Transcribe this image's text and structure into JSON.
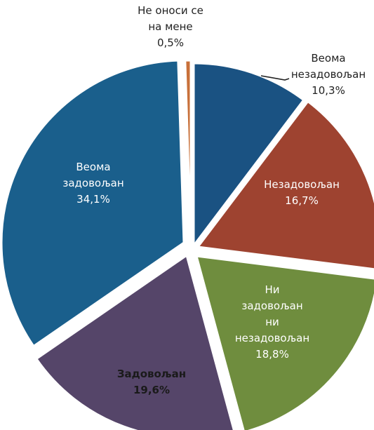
{
  "chart_data": {
    "type": "pie",
    "title": "",
    "slices": [
      {
        "label_lines": [
          "Веома",
          "незадовољан"
        ],
        "value": 10.3,
        "value_label": "10,3%",
        "color": "#1a5282",
        "text_color": "#222222",
        "outside": true
      },
      {
        "label_lines": [
          "Незадовољан"
        ],
        "value": 16.7,
        "value_label": "16,7%",
        "color": "#9e4330",
        "text_color": "#ffffff",
        "outside": false
      },
      {
        "label_lines": [
          "Ни",
          "задовољан",
          "ни",
          "незадовољан"
        ],
        "value": 18.8,
        "value_label": "18,8%",
        "color": "#6f8d3e",
        "text_color": "#ffffff",
        "outside": false
      },
      {
        "label_lines": [
          "Задовољан"
        ],
        "value": 19.6,
        "value_label": "19,6%",
        "color": "#554569",
        "text_color": "#1a1a1a",
        "outside": false
      },
      {
        "label_lines": [
          "Веома",
          "задовољан"
        ],
        "value": 34.1,
        "value_label": "34,1%",
        "color": "#1a5f8c",
        "text_color": "#ffffff",
        "outside": false
      },
      {
        "label_lines": [
          "Не оноси се",
          "на мене"
        ],
        "value": 0.5,
        "value_label": "0,5%",
        "color": "#c8703a",
        "text_color": "#222222",
        "outside": true
      }
    ]
  }
}
